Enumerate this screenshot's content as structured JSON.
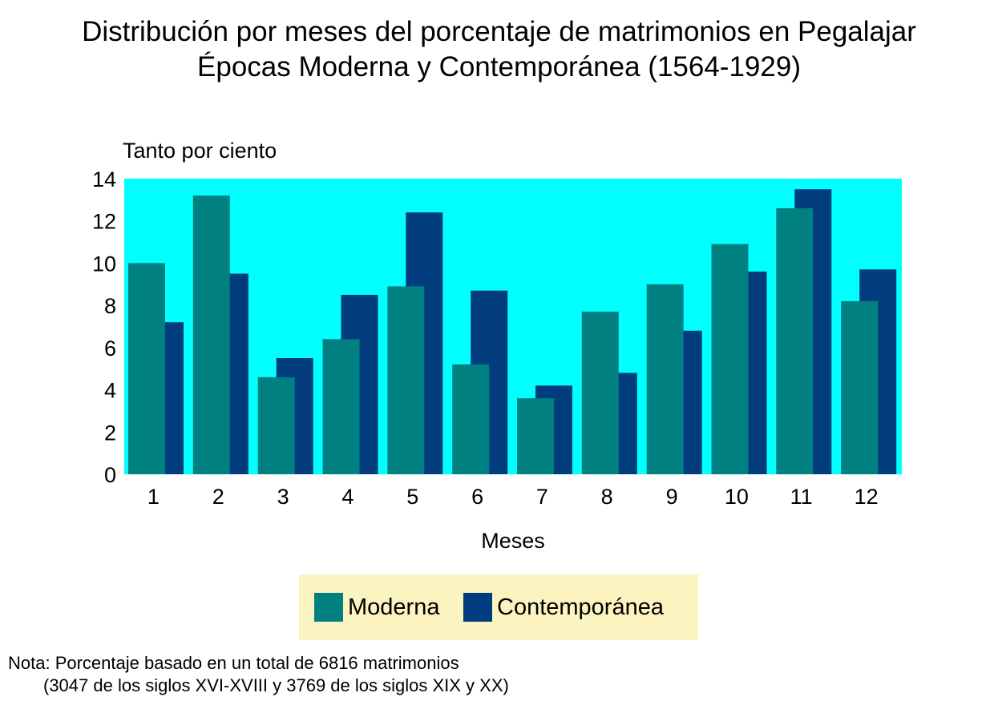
{
  "chart_data": {
    "type": "bar",
    "title": "Distribución por meses del porcentaje de matrimonios en Pegalajar",
    "subtitle": "Épocas Moderna y Contemporánea (1564-1929)",
    "xlabel": "Meses",
    "ylabel": "Tanto por ciento",
    "ylim": [
      0,
      14
    ],
    "yticks": [
      "0",
      "2",
      "4",
      "6",
      "8",
      "10",
      "12",
      "14"
    ],
    "categories": [
      "1",
      "2",
      "3",
      "4",
      "5",
      "6",
      "7",
      "8",
      "9",
      "10",
      "11",
      "12"
    ],
    "series": [
      {
        "name": "Moderna",
        "color": "#008080",
        "values": [
          10.0,
          13.2,
          4.6,
          6.4,
          8.9,
          5.2,
          3.6,
          7.7,
          9.0,
          10.9,
          12.6,
          8.2
        ]
      },
      {
        "name": "Contemporánea",
        "color": "#003c7e",
        "values": [
          7.2,
          9.5,
          5.5,
          8.5,
          12.4,
          8.7,
          4.2,
          4.8,
          6.8,
          9.6,
          13.5,
          9.7
        ]
      }
    ],
    "plot_background": "#00ffff",
    "grid": false,
    "legend_position": "bottom",
    "note_line1": "Nota: Porcentaje basado en un total de 6816 matrimonios",
    "note_line2": "(3047 de los siglos XVI-XVIII y 3769 de los siglos XIX y XX)"
  },
  "legend_background": "#fbf4c0"
}
